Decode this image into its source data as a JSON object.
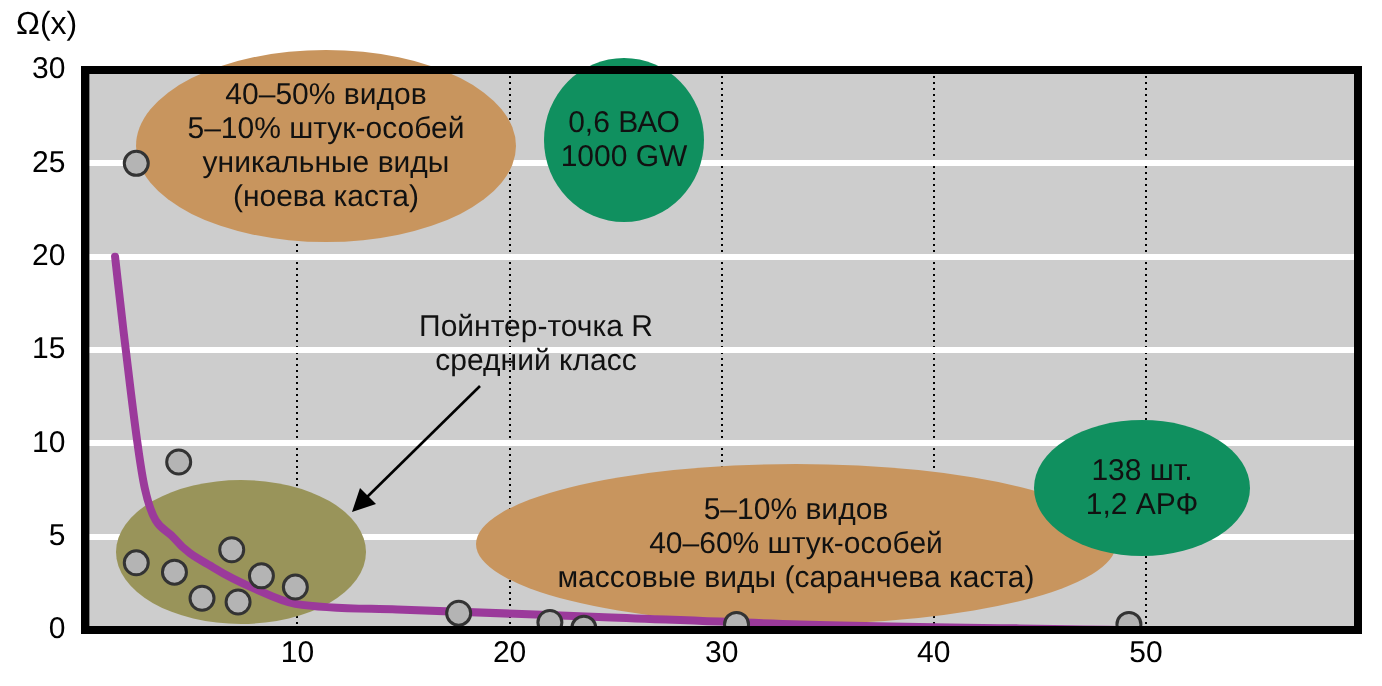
{
  "chart_data": {
    "type": "scatter",
    "ylabel": "Ω(x)",
    "xlim": [
      0,
      60
    ],
    "xticks": [
      10,
      20,
      30,
      40,
      50
    ],
    "ylim": [
      0,
      30
    ],
    "yticks": [
      0,
      5,
      10,
      15,
      20,
      25,
      30
    ],
    "grid": true,
    "legend": false,
    "marker": "circle",
    "series": [
      {
        "type": "line",
        "color": "#9b3a9b",
        "marker": "none",
        "x": [
          1.4,
          1.8,
          2.8,
          4.2,
          6.1,
          8,
          9.9,
          14.7,
          24.2,
          33.7,
          49.2
        ],
        "values": [
          20,
          16,
          7.6,
          4.9,
          3.3,
          2.2,
          1.4,
          1.1,
          0.7,
          0.3,
          0
        ]
      },
      {
        "color": "#b4b4b4",
        "x": [
          2.4,
          4.4,
          2.4,
          4.2,
          5.5,
          6.9,
          7.2,
          8.3,
          9.9,
          17.6,
          21.9,
          23.5,
          30.7,
          49.2
        ],
        "values": [
          25,
          9,
          3.6,
          3.1,
          1.7,
          4.3,
          1.5,
          2.9,
          2.3,
          0.9,
          0.4,
          0.1,
          0.3,
          0.3
        ]
      }
    ],
    "annotations": [
      "40–50% видов\n5–10% штук-особей\nуникальные виды\n(ноева каста)",
      "0,6 ВАО\n1000 GW",
      "Пойнтер-точка R\nсредний класс",
      "5–10% видов\n40–60% штук-особей\nмассовые виды (саранчева каста)",
      "138 шт.\n1,2 АРФ"
    ]
  }
}
